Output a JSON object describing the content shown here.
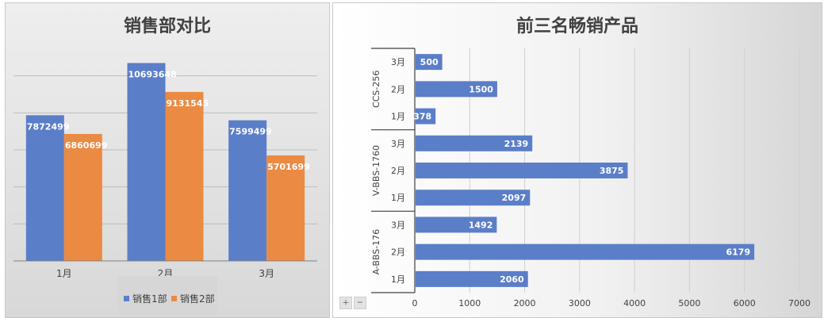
{
  "colors": {
    "series1": "#5b7ec9",
    "series2": "#eb8a43"
  },
  "left_chart": {
    "title": "销售部对比",
    "legend": [
      "销售1部",
      "销售2部"
    ]
  },
  "right_chart": {
    "title": "前三名畅销产品",
    "zoom": {
      "plus": "+",
      "minus": "−"
    }
  },
  "chart_data": [
    {
      "type": "bar",
      "title": "销售部对比",
      "categories": [
        "1月",
        "2月",
        "3月"
      ],
      "series": [
        {
          "name": "销售1部",
          "values": [
            7872499,
            10693648,
            7599499
          ]
        },
        {
          "name": "销售2部",
          "values": [
            6860699,
            9131545,
            5701699
          ]
        }
      ],
      "ylim": [
        0,
        12000000
      ],
      "grid": true,
      "legend_position": "bottom"
    },
    {
      "type": "bar",
      "orientation": "horizontal",
      "title": "前三名畅销产品",
      "groups": [
        {
          "name": "A-BBS-176",
          "categories": [
            "1月",
            "2月",
            "3月"
          ],
          "values": [
            2060,
            6179,
            1492
          ]
        },
        {
          "name": "V-BBS-1760",
          "categories": [
            "1月",
            "2月",
            "3月"
          ],
          "values": [
            2097,
            3875,
            2139
          ]
        },
        {
          "name": "CCS-256",
          "categories": [
            "1月",
            "2月",
            "3月"
          ],
          "values": [
            378,
            1500,
            500
          ]
        }
      ],
      "xlim": [
        0,
        7000
      ],
      "xticks": [
        0,
        1000,
        2000,
        3000,
        4000,
        5000,
        6000,
        7000
      ],
      "grid": true
    }
  ]
}
